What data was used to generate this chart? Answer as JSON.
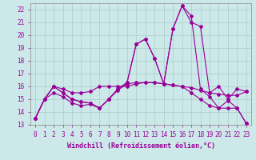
{
  "xlabel": "Windchill (Refroidissement éolien,°C)",
  "background_color": "#cce8e8",
  "grid_color": "#aacccc",
  "line_color": "#990099",
  "x": [
    0,
    1,
    2,
    3,
    4,
    5,
    6,
    7,
    8,
    9,
    10,
    11,
    12,
    13,
    14,
    15,
    16,
    17,
    18,
    19,
    20,
    21,
    22,
    23
  ],
  "line1": [
    13.5,
    15.0,
    16.0,
    15.8,
    15.5,
    15.5,
    15.6,
    16.0,
    16.0,
    16.0,
    16.0,
    16.2,
    16.3,
    16.3,
    16.2,
    16.1,
    16.0,
    15.9,
    15.7,
    15.5,
    15.4,
    15.3,
    15.3,
    15.6
  ],
  "line2": [
    13.5,
    15.0,
    16.0,
    15.5,
    15.0,
    14.8,
    14.7,
    14.3,
    15.0,
    15.8,
    16.3,
    19.3,
    19.7,
    18.2,
    16.2,
    20.5,
    22.3,
    21.5,
    15.8,
    15.2,
    14.3,
    14.9,
    14.3,
    13.1
  ],
  "line3": [
    13.5,
    15.0,
    15.5,
    15.2,
    14.7,
    14.5,
    14.6,
    14.3,
    15.0,
    15.7,
    16.2,
    16.3,
    16.3,
    16.3,
    16.2,
    16.1,
    16.0,
    15.5,
    15.0,
    14.5,
    14.3,
    14.3,
    14.3,
    13.1
  ],
  "line4": [
    13.5,
    15.0,
    16.0,
    15.5,
    15.0,
    14.8,
    14.7,
    14.3,
    15.0,
    15.8,
    16.3,
    19.3,
    19.7,
    18.2,
    16.2,
    20.5,
    22.3,
    21.0,
    20.7,
    15.5,
    16.0,
    15.0,
    15.8,
    15.6
  ],
  "ylim": [
    13,
    22.5
  ],
  "yticks": [
    13,
    14,
    15,
    16,
    17,
    18,
    19,
    20,
    21,
    22
  ],
  "xticks": [
    0,
    1,
    2,
    3,
    4,
    5,
    6,
    7,
    8,
    9,
    10,
    11,
    12,
    13,
    14,
    15,
    16,
    17,
    18,
    19,
    20,
    21,
    22,
    23
  ],
  "markersize": 2.0,
  "linewidth": 0.8,
  "fontsize_xlabel": 6.0,
  "fontsize_ticks": 5.5
}
